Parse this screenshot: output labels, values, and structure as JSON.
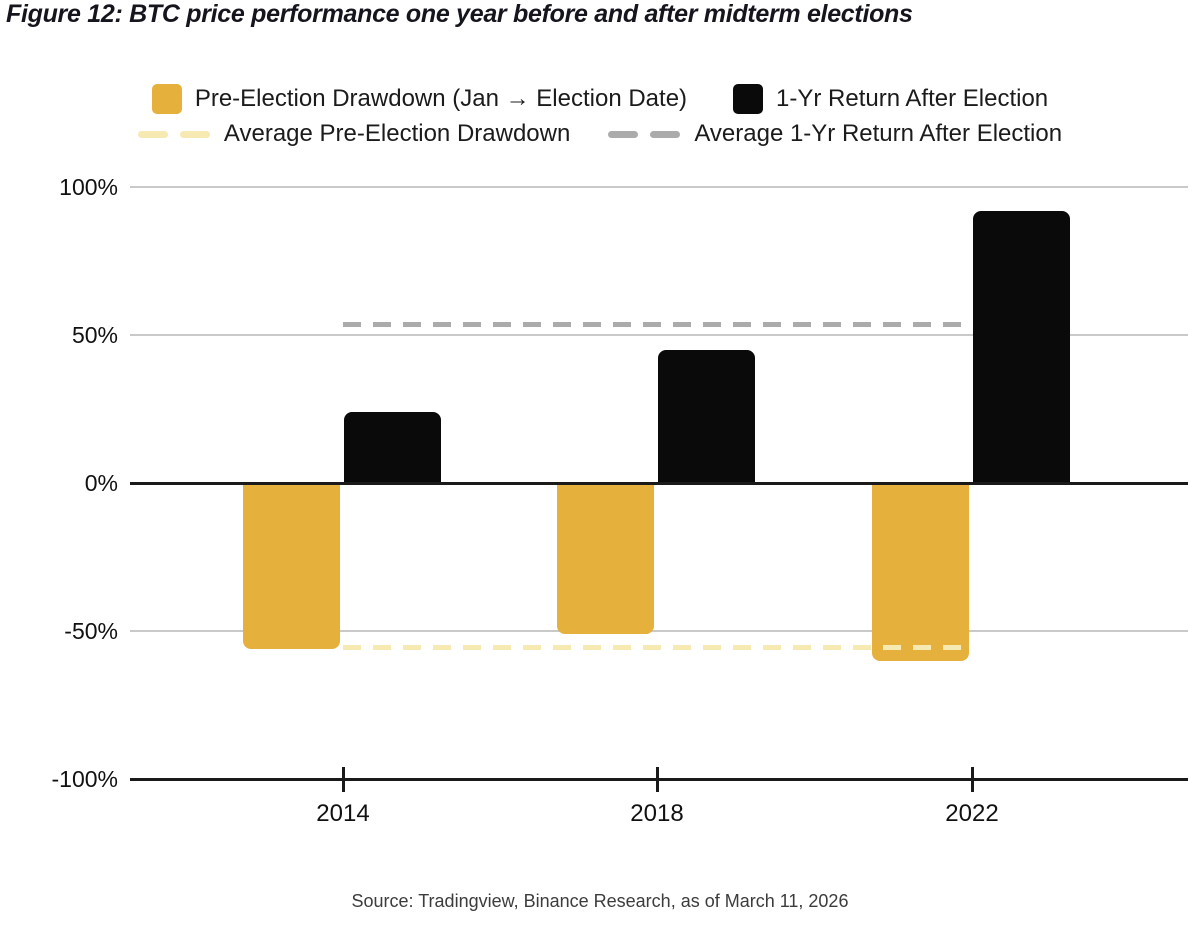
{
  "title": "Figure 12: BTC price performance one year before and after midterm elections",
  "legend": {
    "bar_series": [
      {
        "label": "Pre-Election Drawdown (Jan → Election Date)",
        "color": "#E5B13C"
      },
      {
        "label": "1-Yr Return After Election",
        "color": "#0A0A0A"
      }
    ],
    "line_series": [
      {
        "label": "Average Pre-Election Drawdown",
        "color": "#F6E9B2"
      },
      {
        "label": "Average 1-Yr Return After Election",
        "color": "#ABABAB"
      }
    ]
  },
  "chart_data": {
    "type": "bar",
    "title": "BTC price performance one year before and after midterm elections",
    "categories": [
      "2014",
      "2018",
      "2022"
    ],
    "series": [
      {
        "name": "Pre-Election Drawdown (Jan → Election Date)",
        "values": [
          -56,
          -51,
          -60
        ],
        "color": "#E5B13C"
      },
      {
        "name": "1-Yr Return After Election",
        "values": [
          24,
          45,
          92
        ],
        "color": "#0A0A0A"
      }
    ],
    "average_lines": [
      {
        "name": "Average Pre-Election Drawdown",
        "value": -55.7,
        "color": "#F6E9B2"
      },
      {
        "name": "Average 1-Yr Return After Election",
        "value": 53.7,
        "color": "#ABABAB"
      }
    ],
    "xlabel": "",
    "ylabel": "",
    "ytick_labels": [
      "100%",
      "50%",
      "0%",
      "-50%",
      "-100%"
    ],
    "ytick_values": [
      100,
      50,
      0,
      -50,
      -100
    ],
    "ylim": [
      -100,
      100
    ],
    "grid": "horizontal",
    "legend_position": "top"
  },
  "source": "Source: Tradingview, Binance Research, as of March 11, 2026"
}
